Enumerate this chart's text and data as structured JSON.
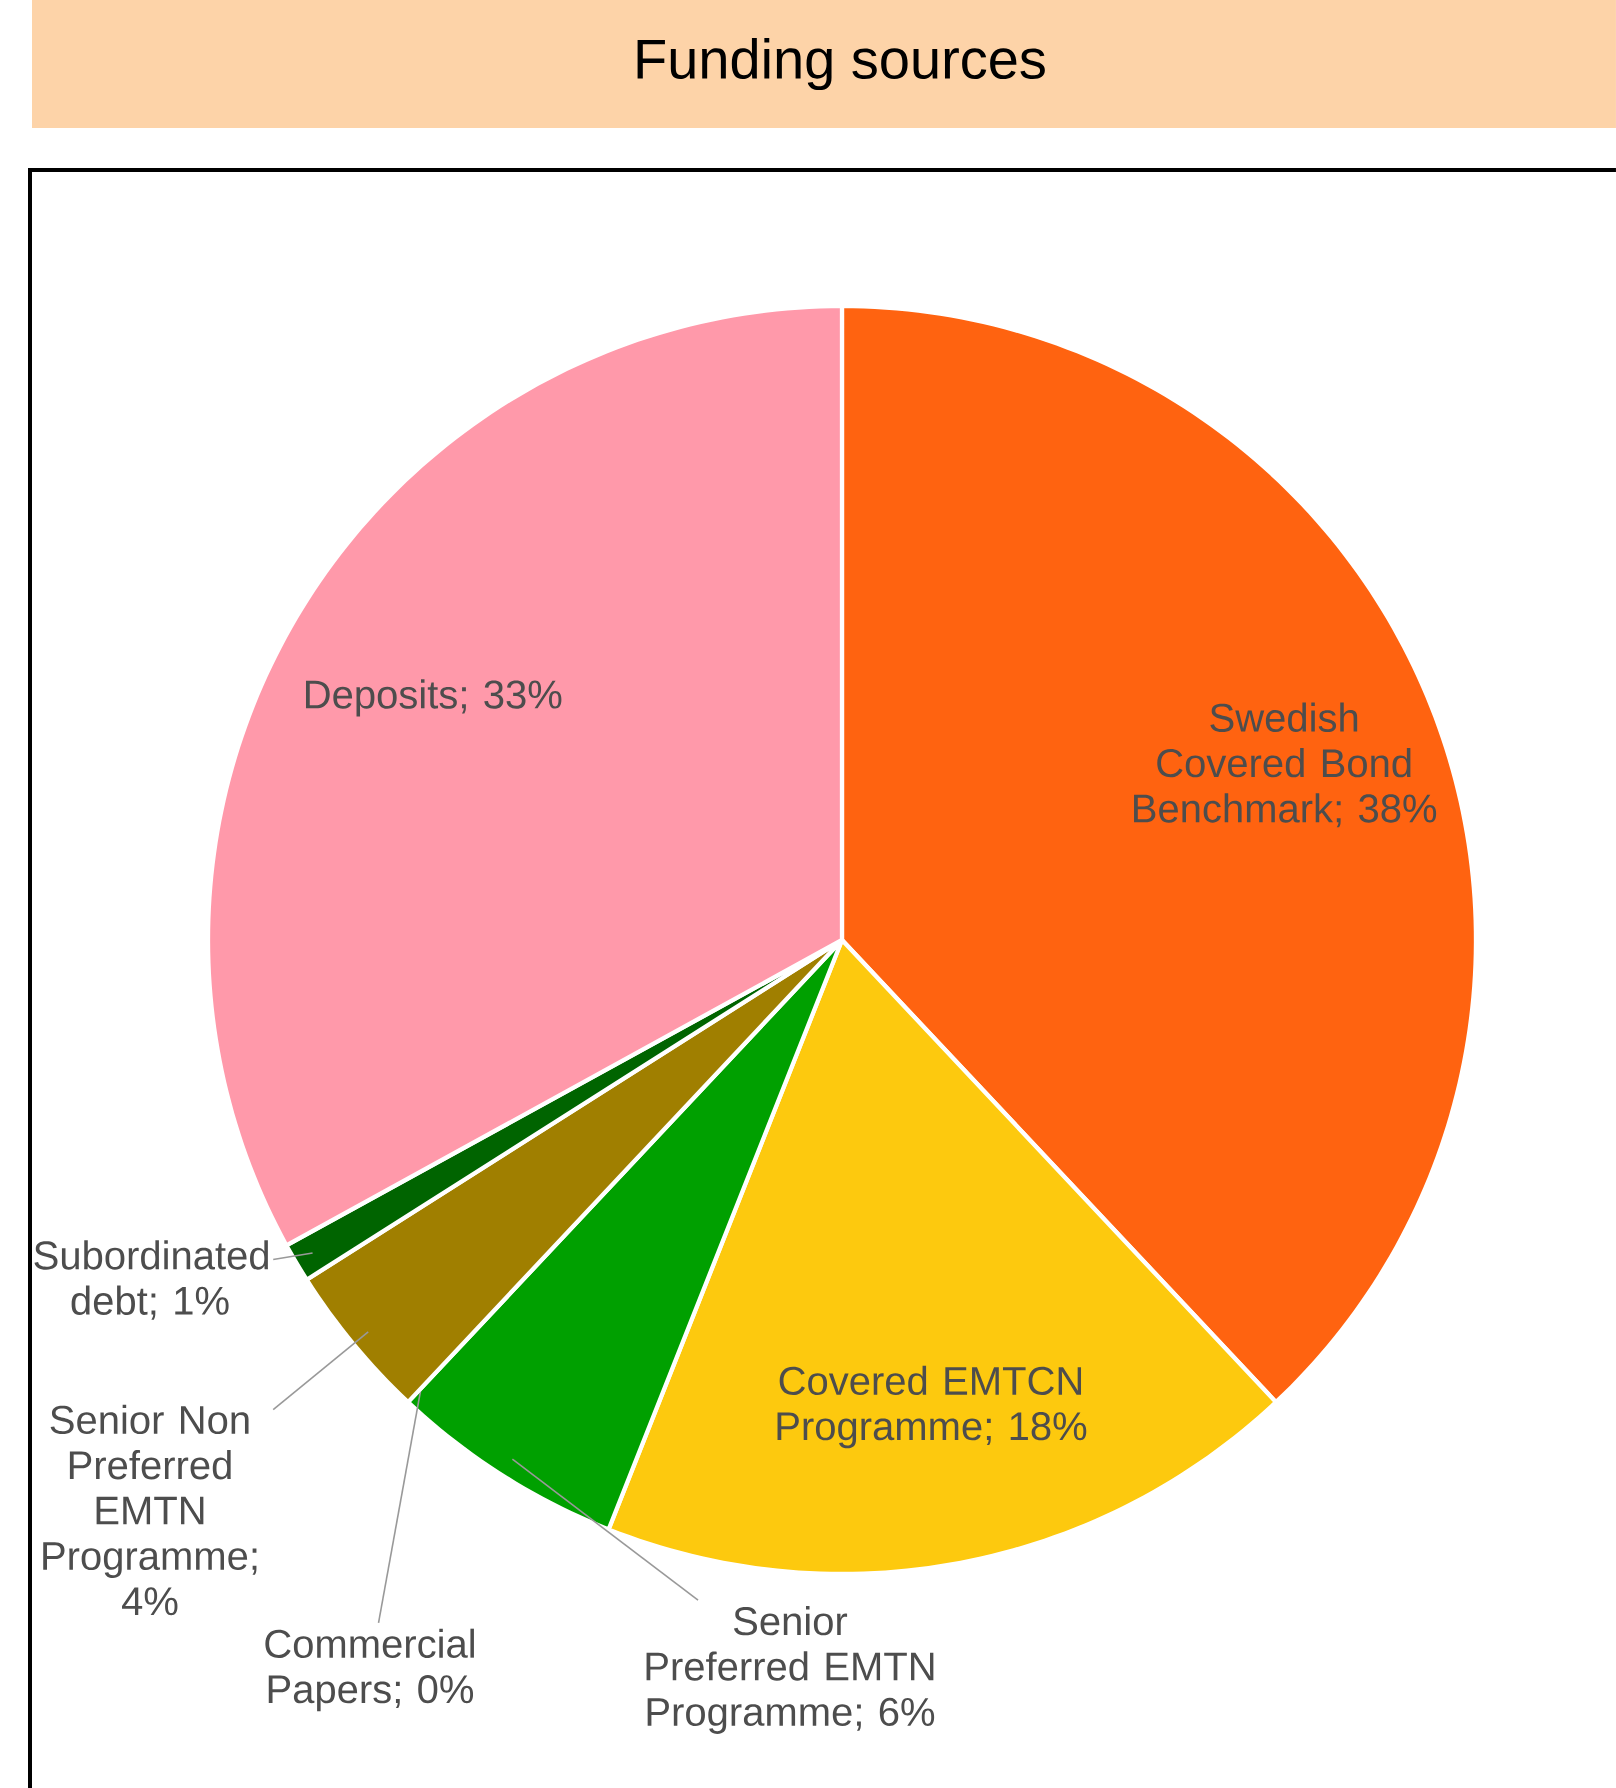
{
  "chart_data": {
    "type": "pie",
    "title": "Funding sources",
    "categories": [
      "Swedish Covered Bond Benchmark",
      "Covered EMTCN Programme",
      "Senior Preferred EMTN Programme",
      "Commercial Papers",
      "Senior Non Preferred EMTN Programme",
      "Subordinated debt",
      "Deposits"
    ],
    "values": [
      38,
      18,
      6,
      0,
      4,
      1,
      33
    ],
    "value_labels": [
      "; 38%",
      "; 18%",
      "; 6%",
      "; 0%",
      "; 4%",
      "; 1%",
      "; 33%"
    ],
    "colors": [
      "#ff6310",
      "#fdc90e",
      "#00a000",
      "#e87d9a",
      "#a07f00",
      "#006400",
      "#ff99aa"
    ]
  }
}
